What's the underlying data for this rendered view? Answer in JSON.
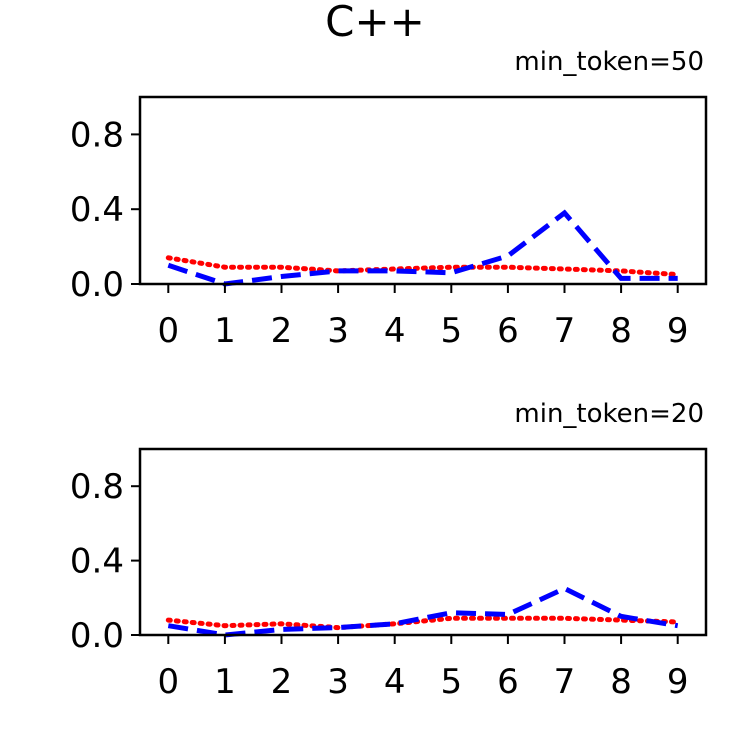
{
  "title": "C++",
  "chart_data": [
    {
      "type": "line",
      "title": "min_token=50",
      "x": [
        0,
        1,
        2,
        3,
        4,
        5,
        6,
        7,
        8,
        9
      ],
      "ylim": [
        0.0,
        1.0
      ],
      "yticks": [
        "0.0",
        "0.4",
        "0.8"
      ],
      "ytick_values": [
        0.0,
        0.4,
        0.8
      ],
      "series": [
        {
          "color": "#ff0000",
          "style": "dotted",
          "values": [
            0.14,
            0.09,
            0.09,
            0.07,
            0.08,
            0.09,
            0.09,
            0.08,
            0.07,
            0.05
          ]
        },
        {
          "color": "#0000ff",
          "style": "dashed",
          "values": [
            0.1,
            0.0,
            0.04,
            0.07,
            0.07,
            0.06,
            0.15,
            0.38,
            0.03,
            0.03
          ]
        }
      ]
    },
    {
      "type": "line",
      "title": "min_token=20",
      "x": [
        0,
        1,
        2,
        3,
        4,
        5,
        6,
        7,
        8,
        9
      ],
      "ylim": [
        0.0,
        1.0
      ],
      "yticks": [
        "0.0",
        "0.4",
        "0.8"
      ],
      "ytick_values": [
        0.0,
        0.4,
        0.8
      ],
      "series": [
        {
          "color": "#ff0000",
          "style": "dotted",
          "values": [
            0.08,
            0.05,
            0.06,
            0.04,
            0.06,
            0.09,
            0.09,
            0.09,
            0.08,
            0.07
          ]
        },
        {
          "color": "#0000ff",
          "style": "dashed",
          "values": [
            0.05,
            0.0,
            0.03,
            0.04,
            0.06,
            0.12,
            0.11,
            0.25,
            0.1,
            0.05
          ]
        }
      ]
    }
  ]
}
